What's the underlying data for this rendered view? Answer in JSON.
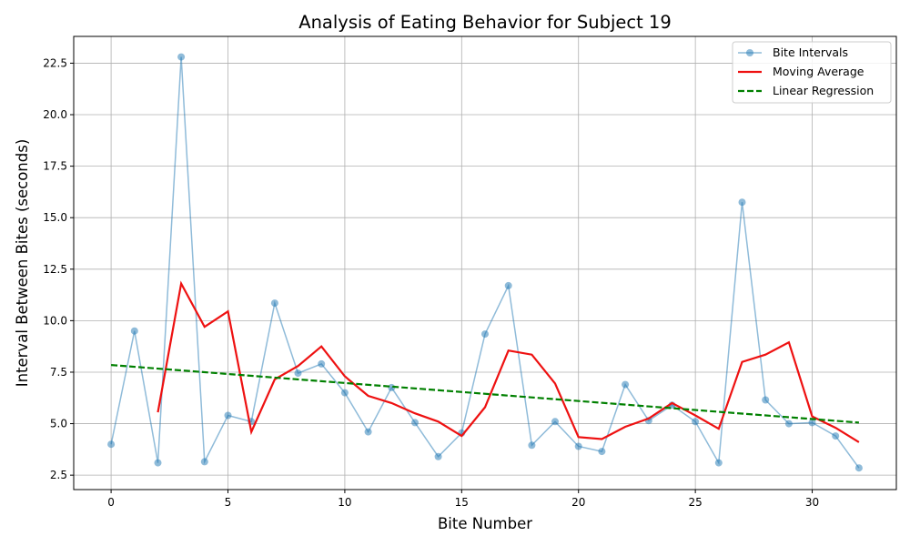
{
  "chart_data": {
    "type": "line",
    "title": "Analysis of Eating Behavior for Subject 19",
    "xlabel": "Bite Number",
    "ylabel": "Interval Between Bites (seconds)",
    "xlim": [
      -1.6,
      33.6
    ],
    "ylim": [
      1.8,
      23.8
    ],
    "x_ticks": [
      0,
      5,
      10,
      15,
      20,
      25,
      30
    ],
    "y_ticks": [
      2.5,
      5.0,
      7.5,
      10.0,
      12.5,
      15.0,
      17.5,
      20.0,
      22.5
    ],
    "grid": true,
    "legend_position": "top-right",
    "series": [
      {
        "name": "Bite Intervals",
        "style": "line-markers",
        "color": "#1f77b4",
        "x": [
          0,
          1,
          2,
          3,
          4,
          5,
          6,
          7,
          8,
          9,
          10,
          11,
          12,
          13,
          14,
          15,
          16,
          17,
          18,
          19,
          20,
          21,
          22,
          23,
          24,
          25,
          26,
          27,
          28,
          29,
          30,
          31,
          32
        ],
        "values": [
          4.0,
          9.5,
          3.1,
          22.8,
          3.15,
          5.4,
          5.1,
          10.85,
          7.45,
          7.9,
          6.5,
          4.6,
          6.75,
          5.05,
          3.4,
          4.55,
          9.35,
          11.7,
          3.95,
          5.1,
          3.9,
          3.65,
          6.9,
          5.15,
          5.9,
          5.1,
          3.1,
          15.75,
          6.15,
          5.0,
          5.05,
          4.4,
          2.85
        ]
      },
      {
        "name": "Moving Average",
        "style": "line",
        "color": "#ee1111",
        "x": [
          2,
          3,
          4,
          5,
          6,
          7,
          8,
          9,
          10,
          11,
          12,
          13,
          14,
          15,
          16,
          17,
          18,
          19,
          20,
          21,
          22,
          23,
          24,
          25,
          26,
          27,
          28,
          29,
          30,
          31,
          32
        ],
        "values": [
          5.55,
          11.8,
          9.7,
          10.45,
          4.6,
          7.15,
          7.8,
          8.75,
          7.3,
          6.35,
          6.0,
          5.5,
          5.1,
          4.4,
          5.8,
          8.55,
          8.35,
          6.95,
          4.35,
          4.25,
          4.85,
          5.25,
          6.0,
          5.4,
          4.75,
          8.0,
          8.35,
          8.95,
          5.35,
          4.8,
          4.1
        ]
      },
      {
        "name": "Linear Regression",
        "style": "dashed",
        "color": "#008000",
        "x": [
          0,
          32
        ],
        "values": [
          7.85,
          5.05
        ]
      }
    ]
  }
}
